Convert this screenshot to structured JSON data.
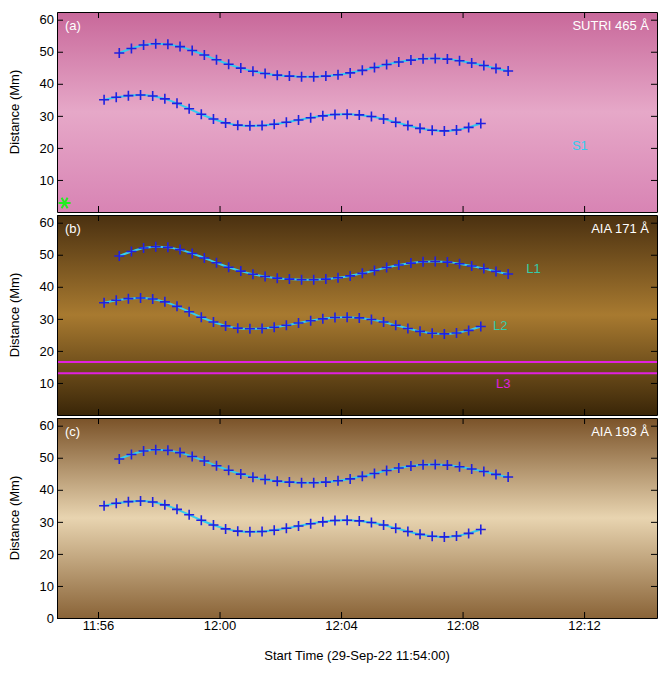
{
  "chart_data": [
    {
      "type": "scatter",
      "label": "(a)",
      "title": "SUTRI 465 Å",
      "ylabel": "Distance (Mm)",
      "xlim": [
        0.65,
        20.4
      ],
      "ylim": [
        0,
        62.4
      ],
      "xticks": [
        2,
        6,
        10,
        14,
        18
      ],
      "yticks": [
        10,
        20,
        30,
        40,
        50,
        60
      ],
      "tick_labels": "y",
      "series": [
        {
          "type": "line",
          "color": "#33ccee",
          "line_style": "solid",
          "x": [
            2.7,
            3.1,
            3.5,
            3.9,
            4.3,
            4.7,
            5.1,
            5.5,
            5.9,
            6.3,
            6.7,
            7.1,
            7.5,
            7.9,
            8.3,
            8.7,
            9.1,
            9.5,
            9.9,
            10.3,
            10.7,
            11.1,
            11.5,
            11.9,
            12.3,
            12.7,
            13.1,
            13.5,
            13.9,
            14.3,
            14.7,
            15.1,
            15.5
          ],
          "values": [
            49.6,
            51.0,
            52.1,
            52.5,
            52.3,
            51.6,
            50.4,
            49.0,
            47.5,
            46.1,
            44.9,
            43.9,
            43.2,
            42.7,
            42.4,
            42.2,
            42.2,
            42.4,
            42.8,
            43.4,
            44.2,
            45.1,
            46.0,
            46.8,
            47.4,
            47.8,
            47.9,
            47.7,
            47.2,
            46.5,
            45.7,
            44.8,
            44.0
          ]
        },
        {
          "type": "scatter",
          "marker": "cross",
          "color": "#2020e0",
          "x": [
            2.7,
            3.1,
            3.5,
            3.9,
            4.3,
            4.7,
            5.1,
            5.5,
            5.9,
            6.3,
            6.7,
            7.1,
            7.5,
            7.9,
            8.3,
            8.7,
            9.1,
            9.5,
            9.9,
            10.3,
            10.7,
            11.1,
            11.5,
            11.9,
            12.3,
            12.7,
            13.1,
            13.5,
            13.9,
            14.3,
            14.7,
            15.1,
            15.5
          ],
          "values": [
            49.6,
            51.0,
            52.1,
            52.5,
            52.3,
            51.6,
            50.4,
            49.0,
            47.5,
            46.1,
            44.9,
            43.9,
            43.2,
            42.7,
            42.4,
            42.2,
            42.2,
            42.4,
            42.8,
            43.4,
            44.2,
            45.1,
            46.0,
            46.8,
            47.4,
            47.8,
            47.9,
            47.7,
            47.2,
            46.5,
            45.7,
            44.8,
            44.0
          ]
        },
        {
          "type": "line",
          "color": "#33ccee",
          "line_style": "solid",
          "x": [
            2.2,
            2.6,
            3.0,
            3.4,
            3.8,
            4.2,
            4.6,
            5.0,
            5.4,
            5.8,
            6.2,
            6.6,
            7.0,
            7.4,
            7.8,
            8.2,
            8.6,
            9.0,
            9.4,
            9.8,
            10.2,
            10.6,
            11.0,
            11.4,
            11.8,
            12.2,
            12.6,
            13.0,
            13.4,
            13.8,
            14.2,
            14.6
          ],
          "values": [
            35.0,
            35.8,
            36.3,
            36.5,
            36.2,
            35.3,
            33.9,
            32.2,
            30.5,
            29.0,
            27.8,
            27.1,
            26.9,
            27.0,
            27.4,
            28.0,
            28.7,
            29.4,
            30.0,
            30.4,
            30.5,
            30.3,
            29.8,
            29.0,
            28.0,
            27.0,
            26.1,
            25.5,
            25.3,
            25.6,
            26.4,
            27.6
          ]
        },
        {
          "type": "scatter",
          "marker": "cross",
          "color": "#2020e0",
          "x": [
            2.2,
            2.6,
            3.0,
            3.4,
            3.8,
            4.2,
            4.6,
            5.0,
            5.4,
            5.8,
            6.2,
            6.6,
            7.0,
            7.4,
            7.8,
            8.2,
            8.6,
            9.0,
            9.4,
            9.8,
            10.2,
            10.6,
            11.0,
            11.4,
            11.8,
            12.2,
            12.6,
            13.0,
            13.4,
            13.8,
            14.2,
            14.6
          ],
          "values": [
            35.0,
            35.8,
            36.3,
            36.5,
            36.2,
            35.3,
            33.9,
            32.2,
            30.5,
            29.0,
            27.8,
            27.1,
            26.9,
            27.0,
            27.4,
            28.0,
            28.7,
            29.4,
            30.0,
            30.4,
            30.5,
            30.3,
            29.8,
            29.0,
            28.0,
            27.0,
            26.1,
            25.5,
            25.3,
            25.6,
            26.4,
            27.6
          ]
        },
        {
          "type": "scatter",
          "marker": "asterisk",
          "color": "#22ee22",
          "x": [
            0.9
          ],
          "values": [
            2.8
          ]
        }
      ],
      "annotations": [
        {
          "text": "S1",
          "x": 17.6,
          "y": 20.5,
          "color": "#33ccee"
        }
      ]
    },
    {
      "type": "scatter",
      "label": "(b)",
      "title": "AIA 171 Å",
      "ylabel": "Distance (Mm)",
      "xlim": [
        0.65,
        20.4
      ],
      "ylim": [
        0,
        62.4
      ],
      "xticks": [
        2,
        6,
        10,
        14,
        18
      ],
      "yticks": [
        10,
        20,
        30,
        40,
        50,
        60
      ],
      "tick_labels": "y",
      "series": [
        {
          "type": "line",
          "color": "#33ccee",
          "line_style": "solid",
          "x": [
            2.7,
            3.1,
            3.5,
            3.9,
            4.3,
            4.7,
            5.1,
            5.5,
            5.9,
            6.3,
            6.7,
            7.1,
            7.5,
            7.9,
            8.3,
            8.7,
            9.1,
            9.5,
            9.9,
            10.3,
            10.7,
            11.1,
            11.5,
            11.9,
            12.3,
            12.7,
            13.1,
            13.5,
            13.9,
            14.3,
            14.7,
            15.1,
            15.5
          ],
          "values": [
            49.6,
            51.0,
            52.1,
            52.5,
            52.3,
            51.6,
            50.4,
            49.0,
            47.5,
            46.1,
            44.9,
            43.9,
            43.2,
            42.7,
            42.4,
            42.2,
            42.2,
            42.4,
            42.8,
            43.4,
            44.2,
            45.1,
            46.0,
            46.8,
            47.4,
            47.8,
            47.9,
            47.7,
            47.2,
            46.5,
            45.7,
            44.8,
            44.0
          ]
        },
        {
          "type": "scatter",
          "marker": "cross",
          "color": "#2020e0",
          "x": [
            2.7,
            3.1,
            3.5,
            3.9,
            4.3,
            4.7,
            5.1,
            5.5,
            5.9,
            6.3,
            6.7,
            7.1,
            7.5,
            7.9,
            8.3,
            8.7,
            9.1,
            9.5,
            9.9,
            10.3,
            10.7,
            11.1,
            11.5,
            11.9,
            12.3,
            12.7,
            13.1,
            13.5,
            13.9,
            14.3,
            14.7,
            15.1,
            15.5
          ],
          "values": [
            49.6,
            51.0,
            52.1,
            52.5,
            52.3,
            51.6,
            50.4,
            49.0,
            47.5,
            46.1,
            44.9,
            43.9,
            43.2,
            42.7,
            42.4,
            42.2,
            42.2,
            42.4,
            42.8,
            43.4,
            44.2,
            45.1,
            46.0,
            46.8,
            47.4,
            47.8,
            47.9,
            47.7,
            47.2,
            46.5,
            45.7,
            44.8,
            44.0
          ]
        },
        {
          "type": "line",
          "color": "#33ccee",
          "line_style": "solid",
          "x": [
            2.2,
            2.6,
            3.0,
            3.4,
            3.8,
            4.2,
            4.6,
            5.0,
            5.4,
            5.8,
            6.2,
            6.6,
            7.0,
            7.4,
            7.8,
            8.2,
            8.6,
            9.0,
            9.4,
            9.8,
            10.2,
            10.6,
            11.0,
            11.4,
            11.8,
            12.2,
            12.6,
            13.0,
            13.4,
            13.8,
            14.2,
            14.6
          ],
          "values": [
            35.0,
            35.8,
            36.3,
            36.5,
            36.2,
            35.3,
            33.9,
            32.2,
            30.5,
            29.0,
            27.8,
            27.1,
            26.9,
            27.0,
            27.4,
            28.0,
            28.7,
            29.4,
            30.0,
            30.4,
            30.5,
            30.3,
            29.8,
            29.0,
            28.0,
            27.0,
            26.1,
            25.5,
            25.3,
            25.6,
            26.4,
            27.6
          ]
        },
        {
          "type": "scatter",
          "marker": "cross",
          "color": "#2020e0",
          "x": [
            2.2,
            2.6,
            3.0,
            3.4,
            3.8,
            4.2,
            4.6,
            5.0,
            5.4,
            5.8,
            6.2,
            6.6,
            7.0,
            7.4,
            7.8,
            8.2,
            8.6,
            9.0,
            9.4,
            9.8,
            10.2,
            10.6,
            11.0,
            11.4,
            11.8,
            12.2,
            12.6,
            13.0,
            13.4,
            13.8,
            14.2,
            14.6
          ],
          "values": [
            35.0,
            35.8,
            36.3,
            36.5,
            36.2,
            35.3,
            33.9,
            32.2,
            30.5,
            29.0,
            27.8,
            27.1,
            26.9,
            27.0,
            27.4,
            28.0,
            28.7,
            29.4,
            30.0,
            30.4,
            30.5,
            30.3,
            29.8,
            29.0,
            28.0,
            27.0,
            26.1,
            25.5,
            25.3,
            25.6,
            26.4,
            27.6
          ]
        },
        {
          "type": "line",
          "color": "#e020e0",
          "line_style": "solid",
          "x": [
            0.65,
            20.4
          ],
          "values": [
            16.5,
            16.5
          ]
        },
        {
          "type": "line",
          "color": "#e020e0",
          "line_style": "solid",
          "x": [
            0.65,
            20.4
          ],
          "values": [
            13.0,
            13.0
          ]
        }
      ],
      "annotations": [
        {
          "text": "L1",
          "x": 16.1,
          "y": 45.5,
          "color": "#33ccaa"
        },
        {
          "text": "L2",
          "x": 15.0,
          "y": 27.5,
          "color": "#33ccaa"
        },
        {
          "text": "L3",
          "x": 15.1,
          "y": 9.5,
          "color": "#e020e0"
        }
      ]
    },
    {
      "type": "scatter",
      "label": "(c)",
      "title": "AIA 193 Å",
      "ylabel": "Distance (Mm)",
      "xlabel": "Start Time (29-Sep-22 11:54:00)",
      "xlim": [
        0.65,
        20.4
      ],
      "ylim": [
        0,
        62.4
      ],
      "xticks": [
        {
          "value": 2,
          "label": "11:56"
        },
        {
          "value": 6,
          "label": "12:00"
        },
        {
          "value": 10,
          "label": "12:04"
        },
        {
          "value": 14,
          "label": "12:08"
        },
        {
          "value": 18,
          "label": "12:12"
        }
      ],
      "yticks": [
        0,
        10,
        20,
        30,
        40,
        50,
        60
      ],
      "series": [
        {
          "type": "line",
          "color": "#33ccee",
          "line_style": "solid",
          "x": [
            2.7,
            3.1,
            3.5,
            3.9,
            4.3,
            4.7,
            5.1,
            5.5,
            5.9,
            6.3,
            6.7,
            7.1,
            7.5,
            7.9,
            8.3,
            8.7,
            9.1,
            9.5,
            9.9,
            10.3,
            10.7,
            11.1,
            11.5,
            11.9,
            12.3,
            12.7,
            13.1,
            13.5,
            13.9,
            14.3,
            14.7,
            15.1,
            15.5
          ],
          "values": [
            49.6,
            51.0,
            52.1,
            52.5,
            52.3,
            51.6,
            50.4,
            49.0,
            47.5,
            46.1,
            44.9,
            43.9,
            43.2,
            42.7,
            42.4,
            42.2,
            42.2,
            42.4,
            42.8,
            43.4,
            44.2,
            45.1,
            46.0,
            46.8,
            47.4,
            47.8,
            47.9,
            47.7,
            47.2,
            46.5,
            45.7,
            44.8,
            44.0
          ]
        },
        {
          "type": "scatter",
          "marker": "cross",
          "color": "#2020e0",
          "x": [
            2.7,
            3.1,
            3.5,
            3.9,
            4.3,
            4.7,
            5.1,
            5.5,
            5.9,
            6.3,
            6.7,
            7.1,
            7.5,
            7.9,
            8.3,
            8.7,
            9.1,
            9.5,
            9.9,
            10.3,
            10.7,
            11.1,
            11.5,
            11.9,
            12.3,
            12.7,
            13.1,
            13.5,
            13.9,
            14.3,
            14.7,
            15.1,
            15.5
          ],
          "values": [
            49.6,
            51.0,
            52.1,
            52.5,
            52.3,
            51.6,
            50.4,
            49.0,
            47.5,
            46.1,
            44.9,
            43.9,
            43.2,
            42.7,
            42.4,
            42.2,
            42.2,
            42.4,
            42.8,
            43.4,
            44.2,
            45.1,
            46.0,
            46.8,
            47.4,
            47.8,
            47.9,
            47.7,
            47.2,
            46.5,
            45.7,
            44.8,
            44.0
          ]
        },
        {
          "type": "line",
          "color": "#33ccee",
          "line_style": "solid",
          "x": [
            2.2,
            2.6,
            3.0,
            3.4,
            3.8,
            4.2,
            4.6,
            5.0,
            5.4,
            5.8,
            6.2,
            6.6,
            7.0,
            7.4,
            7.8,
            8.2,
            8.6,
            9.0,
            9.4,
            9.8,
            10.2,
            10.6,
            11.0,
            11.4,
            11.8,
            12.2,
            12.6,
            13.0,
            13.4,
            13.8,
            14.2,
            14.6
          ],
          "values": [
            35.0,
            35.8,
            36.3,
            36.5,
            36.2,
            35.3,
            33.9,
            32.2,
            30.5,
            29.0,
            27.8,
            27.1,
            26.9,
            27.0,
            27.4,
            28.0,
            28.7,
            29.4,
            30.0,
            30.4,
            30.5,
            30.3,
            29.8,
            29.0,
            28.0,
            27.0,
            26.1,
            25.5,
            25.3,
            25.6,
            26.4,
            27.6
          ]
        },
        {
          "type": "scatter",
          "marker": "cross",
          "color": "#2020e0",
          "x": [
            2.2,
            2.6,
            3.0,
            3.4,
            3.8,
            4.2,
            4.6,
            5.0,
            5.4,
            5.8,
            6.2,
            6.6,
            7.0,
            7.4,
            7.8,
            8.2,
            8.6,
            9.0,
            9.4,
            9.8,
            10.2,
            10.6,
            11.0,
            11.4,
            11.8,
            12.2,
            12.6,
            13.0,
            13.4,
            13.8,
            14.2,
            14.6
          ],
          "values": [
            35.0,
            35.8,
            36.3,
            36.5,
            36.2,
            35.3,
            33.9,
            32.2,
            30.5,
            29.0,
            27.8,
            27.1,
            26.9,
            27.0,
            27.4,
            28.0,
            28.7,
            29.4,
            30.0,
            30.4,
            30.5,
            30.3,
            29.8,
            29.0,
            28.0,
            27.0,
            26.1,
            25.5,
            25.3,
            25.6,
            26.4,
            27.6
          ]
        }
      ],
      "annotations": []
    }
  ]
}
